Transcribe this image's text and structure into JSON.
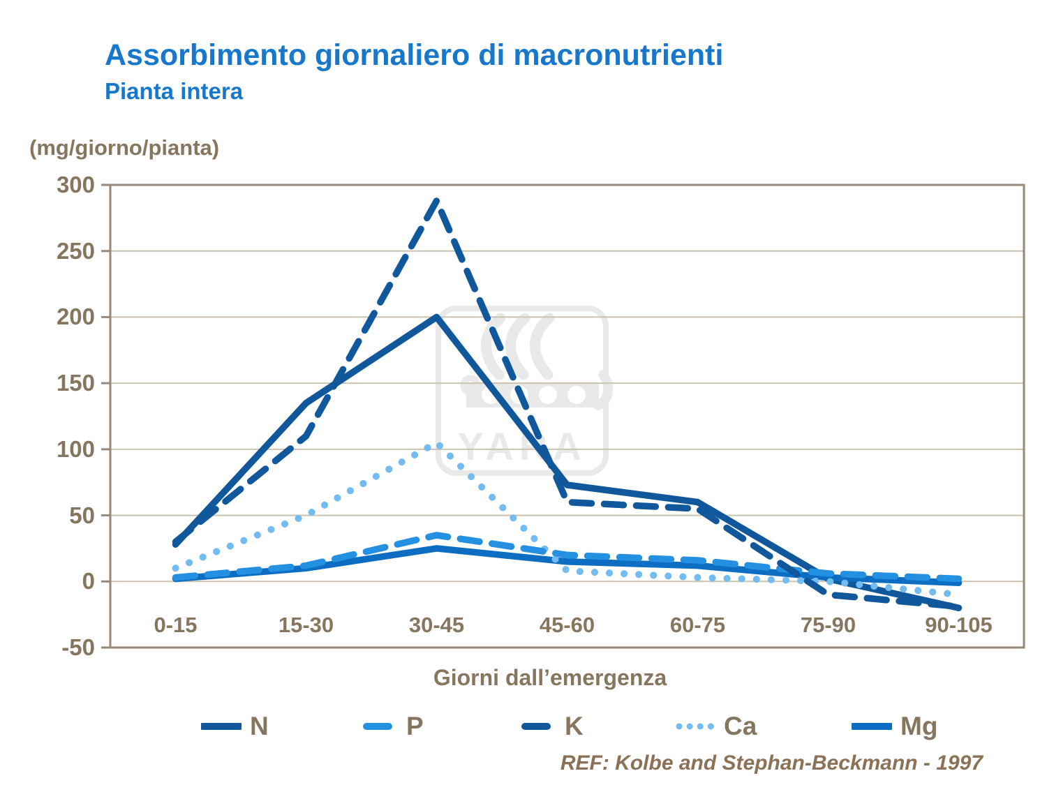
{
  "title": "Assorbimento giornaliero di macronutrienti",
  "subtitle": "Pianta intera",
  "unit_label": "(mg/giorno/pianta)",
  "watermark": {
    "text": "YARA"
  },
  "footer": {
    "reference": "REF: Kolbe and Stephan-Beckmann - 1997"
  },
  "colors": {
    "title": "#1677cd",
    "axis": "#86765f",
    "footer": "#8a7157",
    "grid": "#cbc2b0",
    "border": "#97897a",
    "watermark": "#e9e9e9",
    "series_dark_blue": "#10589b",
    "series_bright_blue": "#2490e2",
    "series_light_blue": "#73bcf2",
    "series_medium_blue": "#0c6dc2"
  },
  "chart_data": {
    "type": "line",
    "title": "Assorbimento giornaliero di macronutrienti",
    "subtitle": "Pianta intera",
    "xlabel": "Giorni dall’emergenza",
    "ylabel": "(mg/giorno/pianta)",
    "categories": [
      "0-15",
      "15-30",
      "30-45",
      "45-60",
      "60-75",
      "75-90",
      "90-105"
    ],
    "ylim": [
      -50,
      300
    ],
    "y_ticks": [
      300,
      250,
      200,
      150,
      100,
      50,
      0,
      -50
    ],
    "grid": "horizontal",
    "legend_position": "bottom",
    "series": [
      {
        "name": "N",
        "style": "solid",
        "color": "#10589b",
        "values": [
          28,
          135,
          200,
          73,
          60,
          2,
          -20
        ]
      },
      {
        "name": "P",
        "style": "dashed",
        "color": "#2490e2",
        "values": [
          3,
          12,
          35,
          20,
          16,
          6,
          2
        ]
      },
      {
        "name": "K",
        "style": "dashed",
        "color": "#10589b",
        "values": [
          30,
          110,
          288,
          60,
          55,
          -10,
          -19
        ]
      },
      {
        "name": "Ca",
        "style": "dotted",
        "color": "#73bcf2",
        "values": [
          10,
          50,
          105,
          8,
          3,
          0,
          -10
        ]
      },
      {
        "name": "Mg",
        "style": "solid",
        "color": "#0c6dc2",
        "values": [
          2,
          10,
          25,
          15,
          12,
          3,
          -1
        ]
      }
    ]
  }
}
